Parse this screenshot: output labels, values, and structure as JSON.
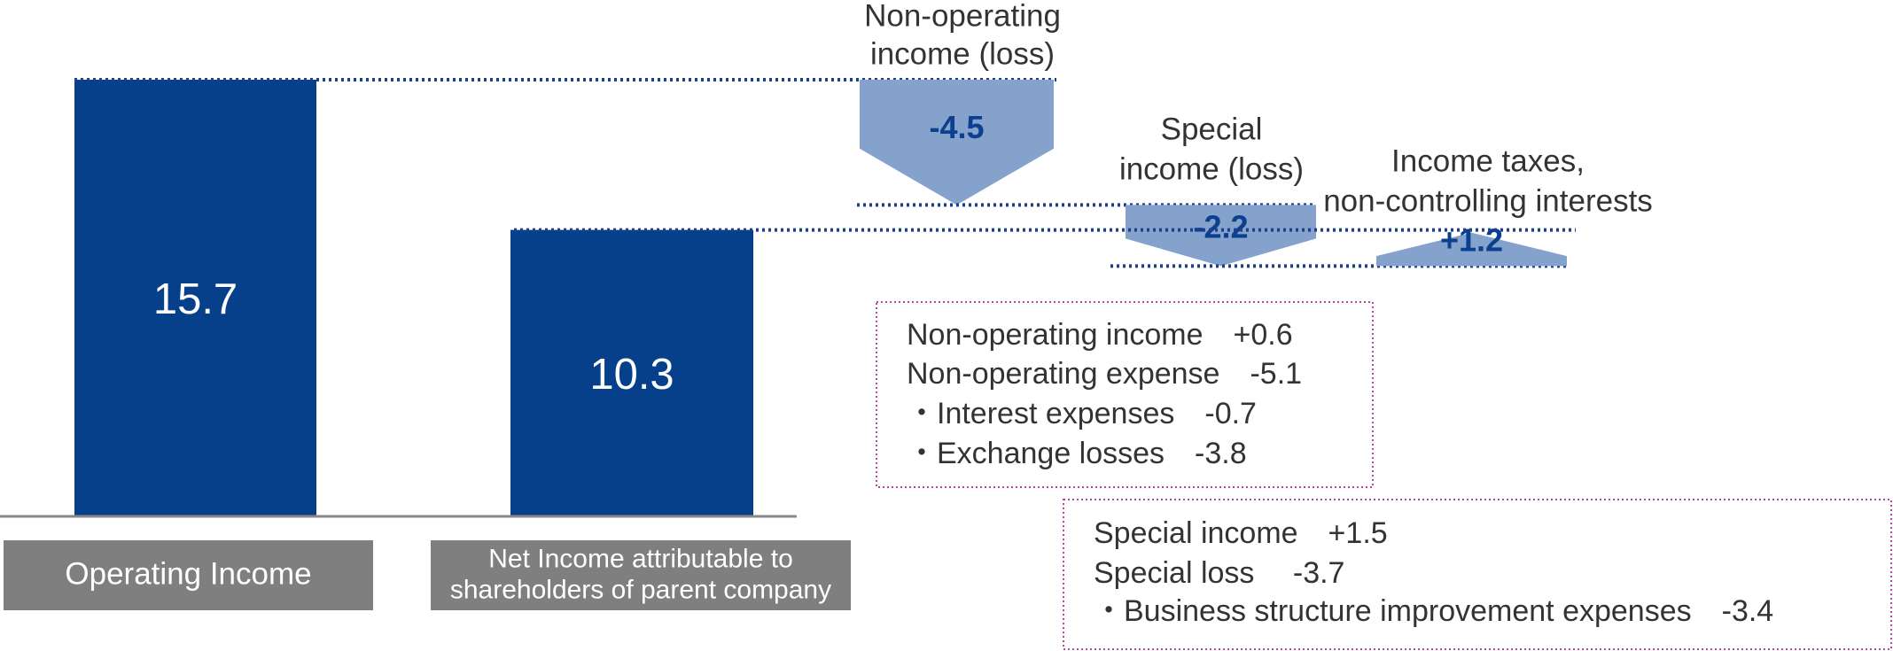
{
  "chart_data": {
    "type": "waterfall",
    "bar_color": "#063f8a",
    "step_color": "#84a2cb",
    "step_text_color": "#0b3f8f",
    "line_color": "#1d3f8c",
    "totals": [
      {
        "label_lines": [
          "Operating Income"
        ],
        "value": 15.7
      },
      {
        "label_lines": [
          "Net Income attributable to",
          "shareholders of parent company"
        ],
        "value": 10.3
      }
    ],
    "steps": [
      {
        "label_lines": [
          "Non-operating",
          "income (loss)"
        ],
        "value": -4.5,
        "value_label": "-4.5"
      },
      {
        "label_lines": [
          "Special",
          "income (loss)"
        ],
        "value": -2.2,
        "value_label": "-2.2"
      },
      {
        "label_lines": [
          "Income taxes,",
          "non-controlling interests"
        ],
        "value": 1.2,
        "value_label": "+1.2"
      }
    ],
    "notes": [
      {
        "lines": [
          "Non-operating income　+0.6",
          "Non-operating expense　-5.1",
          "・Interest expenses　-0.7",
          "・Exchange losses　-3.8"
        ]
      },
      {
        "lines": [
          "Special income　+1.5",
          "Special loss　 -3.7",
          "・Business structure improvement expenses　-3.4"
        ]
      }
    ]
  }
}
